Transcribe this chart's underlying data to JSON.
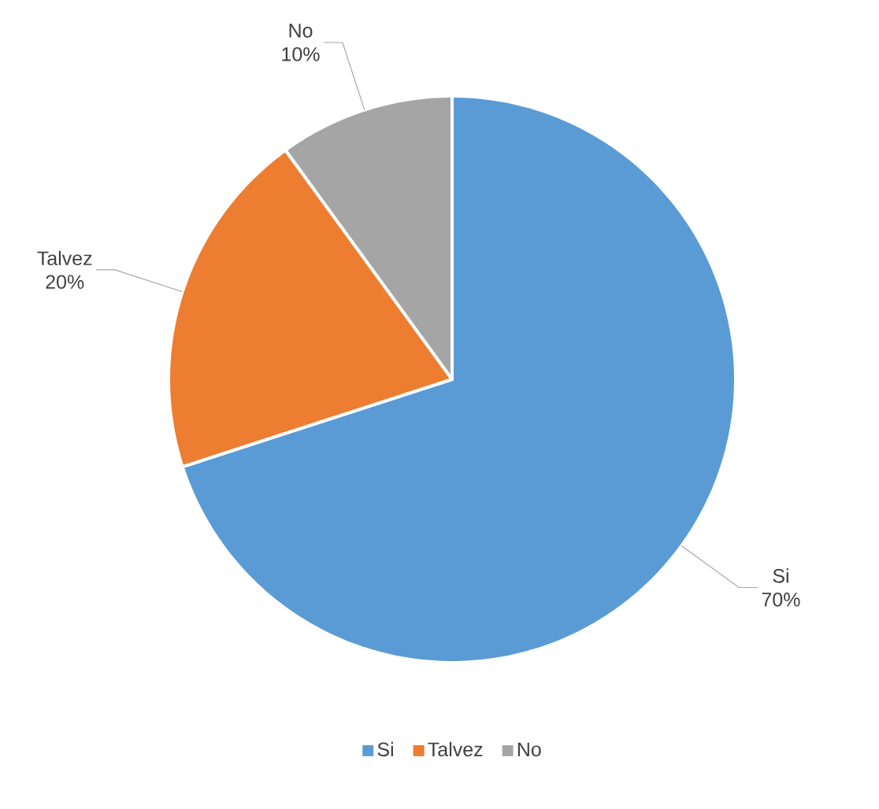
{
  "chart_data": {
    "type": "pie",
    "categories": [
      "Si",
      "Talvez",
      "No"
    ],
    "values": [
      70,
      20,
      10
    ],
    "colors": [
      "#5b9bd5",
      "#ed7d31",
      "#a5a5a5"
    ],
    "value_labels": [
      "70%",
      "20%",
      "10%"
    ],
    "legend": "bottom"
  }
}
